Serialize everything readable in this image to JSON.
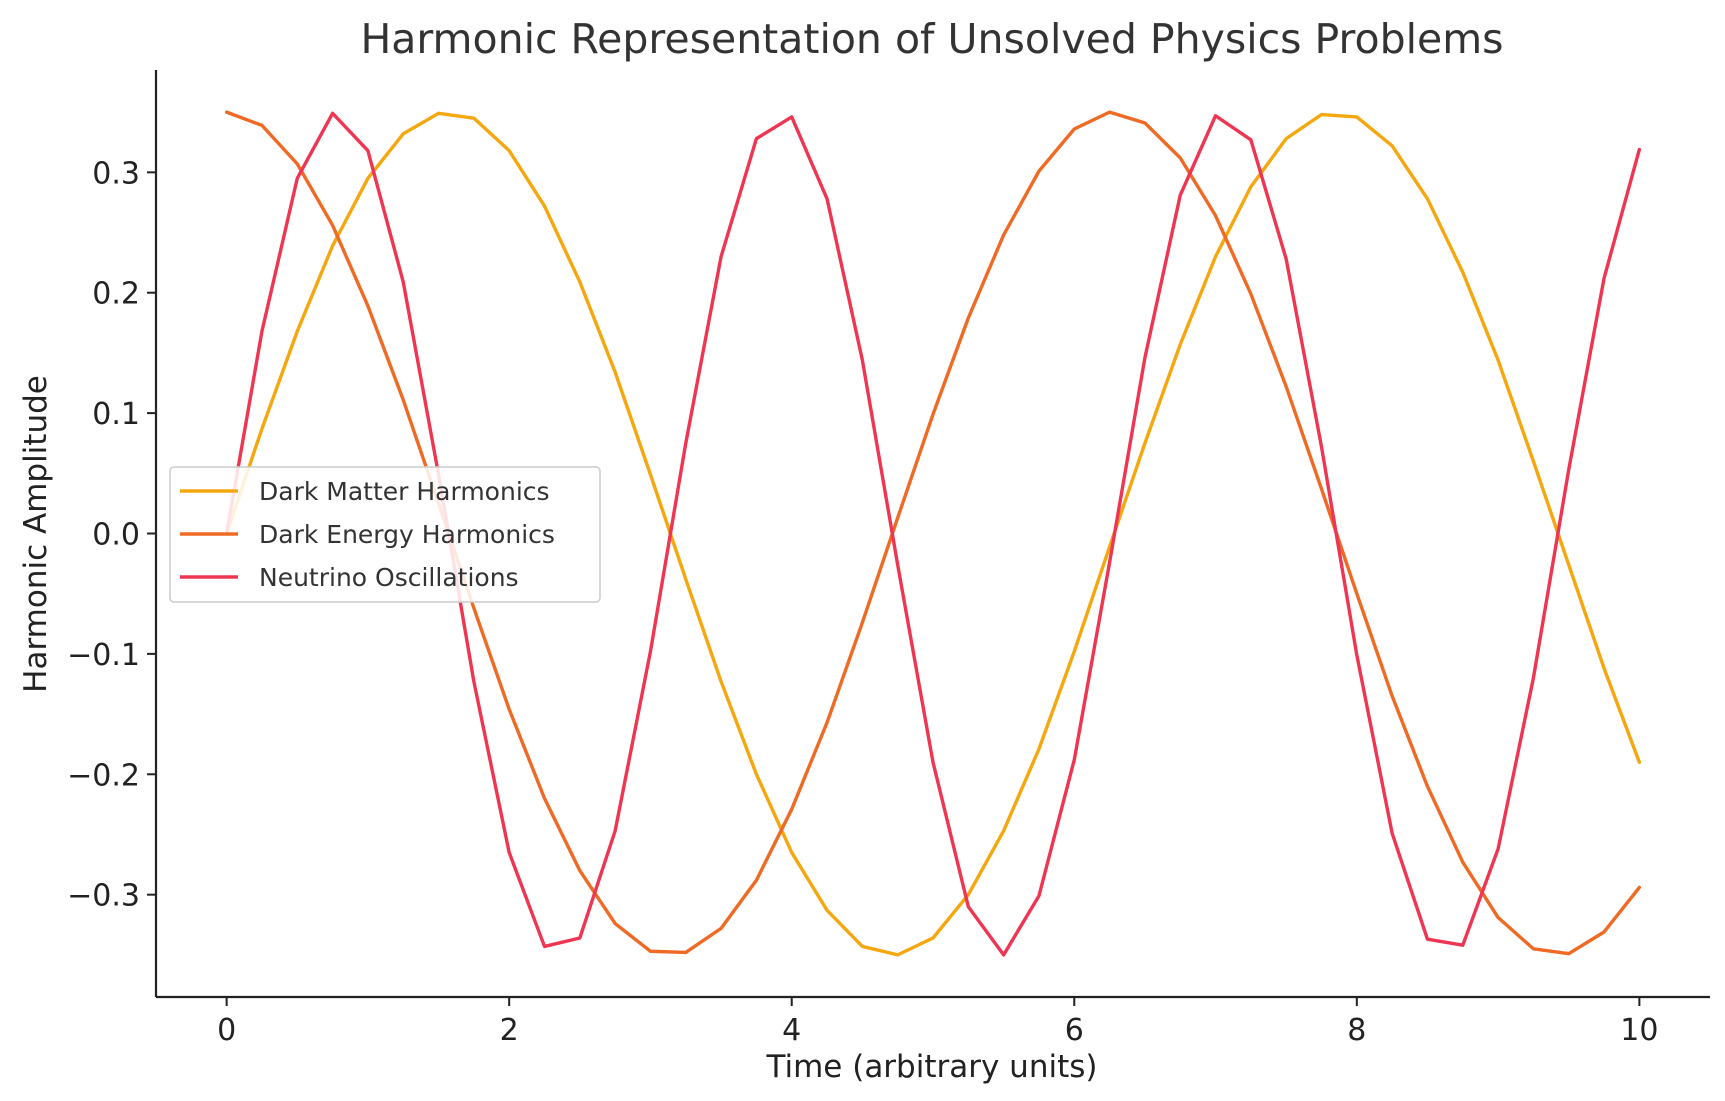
{
  "chart_data": {
    "type": "line",
    "title": "Harmonic Representation of Unsolved Physics Problems",
    "xlabel": "Time (arbitrary units)",
    "ylabel": "Harmonic Amplitude",
    "xlim": [
      -0.5,
      10.5
    ],
    "ylim": [
      -0.385,
      0.385
    ],
    "xticks": [
      0,
      2,
      4,
      6,
      8,
      10
    ],
    "xtick_labels": [
      "0",
      "2",
      "4",
      "6",
      "8",
      "10"
    ],
    "yticks": [
      -0.3,
      -0.2,
      -0.1,
      0.0,
      0.1,
      0.2,
      0.3
    ],
    "ytick_labels": [
      "−0.3",
      "−0.2",
      "−0.1",
      "0.0",
      "0.1",
      "0.2",
      "0.3"
    ],
    "grid": false,
    "legend": "center-left",
    "x": [
      0,
      0.25,
      0.5,
      0.75,
      1,
      1.25,
      1.5,
      1.75,
      2,
      2.25,
      2.5,
      2.75,
      3,
      3.25,
      3.5,
      3.75,
      4,
      4.25,
      4.5,
      4.75,
      5,
      5.25,
      5.5,
      5.75,
      6,
      6.25,
      6.5,
      6.75,
      7,
      7.25,
      7.5,
      7.75,
      8,
      8.25,
      8.5,
      8.75,
      9,
      9.25,
      9.5,
      9.75,
      10
    ],
    "series": [
      {
        "name": "Dark Matter Harmonics",
        "color": "#f5a70f",
        "values": [
          0.0,
          0.087,
          0.168,
          0.239,
          0.295,
          0.332,
          0.349,
          0.345,
          0.318,
          0.272,
          0.209,
          0.134,
          0.049,
          -0.038,
          -0.123,
          -0.2,
          -0.265,
          -0.313,
          -0.343,
          -0.35,
          -0.336,
          -0.3,
          -0.247,
          -0.179,
          -0.098,
          -0.011,
          0.075,
          0.157,
          0.23,
          0.288,
          0.328,
          0.348,
          0.346,
          0.322,
          0.278,
          0.217,
          0.144,
          0.06,
          -0.026,
          -0.112,
          -0.19
        ]
      },
      {
        "name": "Dark Energy Harmonics",
        "color": "#ef6a24",
        "values": [
          0.35,
          0.339,
          0.307,
          0.256,
          0.189,
          0.111,
          0.025,
          -0.062,
          -0.146,
          -0.22,
          -0.28,
          -0.324,
          -0.347,
          -0.348,
          -0.328,
          -0.288,
          -0.229,
          -0.157,
          -0.074,
          0.013,
          0.099,
          0.179,
          0.248,
          0.301,
          0.336,
          0.35,
          0.341,
          0.312,
          0.264,
          0.199,
          0.122,
          0.037,
          -0.05,
          -0.135,
          -0.21,
          -0.273,
          -0.319,
          -0.345,
          -0.349,
          -0.331,
          -0.294
        ]
      },
      {
        "name": "Neutrino Oscillations",
        "color": "#ee3653",
        "values": [
          0.0,
          0.168,
          0.295,
          0.349,
          0.318,
          0.209,
          0.049,
          -0.123,
          -0.265,
          -0.343,
          -0.336,
          -0.247,
          -0.098,
          0.075,
          0.23,
          0.328,
          0.346,
          0.278,
          0.144,
          -0.026,
          -0.19,
          -0.31,
          -0.35,
          -0.301,
          -0.188,
          -0.024,
          0.146,
          0.281,
          0.347,
          0.327,
          0.228,
          0.072,
          -0.101,
          -0.249,
          -0.337,
          -0.342,
          -0.262,
          -0.12,
          0.053,
          0.212,
          0.319
        ]
      }
    ]
  }
}
